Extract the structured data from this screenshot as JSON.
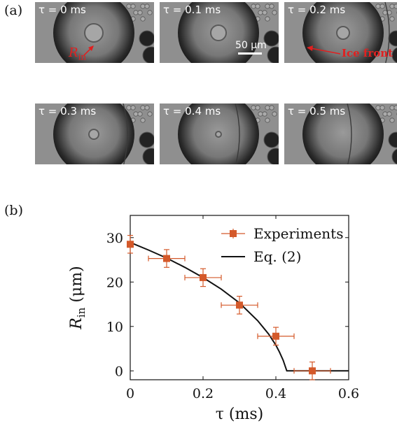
{
  "panel_a": {
    "label": "(a)",
    "frames": [
      {
        "tau": "τ = 0 ms"
      },
      {
        "tau": "τ = 0.1 ms"
      },
      {
        "tau": "τ = 0.2 ms"
      },
      {
        "tau": "τ = 0.3 ms"
      },
      {
        "tau": "τ = 0.4 ms"
      },
      {
        "tau": "τ = 0.5 ms"
      }
    ],
    "rin_label_main": "R",
    "rin_label_sub": "in",
    "scale_bar": "50 μm",
    "ice_front": "Ice front",
    "colors": {
      "annotation": "#e02020",
      "image_gray": "#8f8f8f"
    }
  },
  "panel_b": {
    "label": "(b)"
  },
  "chart_data": {
    "type": "scatter",
    "xlabel": "τ (ms)",
    "ylabel_main": "R",
    "ylabel_sub": "in",
    "ylabel_unit": "(μm)",
    "xlim": [
      0,
      0.6
    ],
    "ylim": [
      -2,
      35
    ],
    "xticks": [
      "0",
      "0.2",
      "0.4",
      "0.6"
    ],
    "xtick_values": [
      0,
      0.2,
      0.4,
      0.6
    ],
    "yticks": [
      "0",
      "10",
      "20",
      "30"
    ],
    "ytick_values": [
      0,
      10,
      20,
      30
    ],
    "grid": false,
    "legend_position": "top-right",
    "series": [
      {
        "name": "Experiments",
        "kind": "scatter-errorbars",
        "color": "#d4592a",
        "points": [
          {
            "x": 0.0,
            "y": 28.5,
            "xerr": 0.0,
            "yerr": 2.0
          },
          {
            "x": 0.1,
            "y": 25.3,
            "xerr": 0.05,
            "yerr": 2.0
          },
          {
            "x": 0.2,
            "y": 21.0,
            "xerr": 0.05,
            "yerr": 2.0
          },
          {
            "x": 0.3,
            "y": 14.8,
            "xerr": 0.05,
            "yerr": 2.0
          },
          {
            "x": 0.4,
            "y": 7.8,
            "xerr": 0.05,
            "yerr": 2.0
          },
          {
            "x": 0.5,
            "y": 0.0,
            "xerr": 0.05,
            "yerr": 2.0
          }
        ]
      },
      {
        "name": "Eq. (2)",
        "kind": "line",
        "color": "#111111",
        "x": [
          0,
          0.05,
          0.1,
          0.15,
          0.2,
          0.25,
          0.3,
          0.35,
          0.38,
          0.4,
          0.41,
          0.42,
          0.43,
          0.44,
          0.5,
          0.6
        ],
        "y": [
          28.9,
          27.2,
          25.4,
          23.3,
          21.0,
          18.4,
          15.3,
          11.3,
          8.3,
          5.8,
          4.2,
          2.4,
          0.0,
          0.0,
          0.0,
          0.0
        ]
      }
    ]
  }
}
